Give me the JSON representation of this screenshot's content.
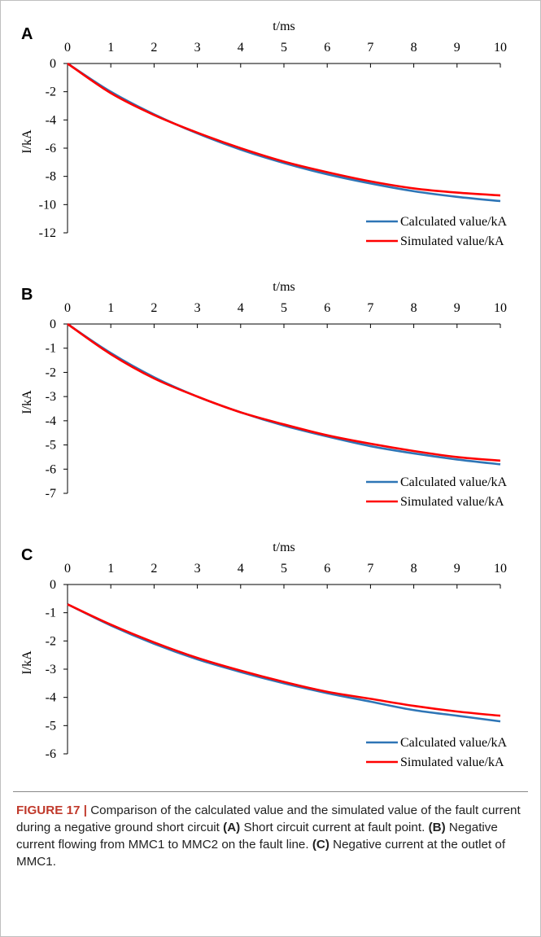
{
  "chart_data": [
    {
      "type": "line",
      "panel_label": "A",
      "xlabel": "t/ms",
      "ylabel": "I/kA",
      "xlim": [
        0,
        10
      ],
      "ylim": [
        -12,
        0
      ],
      "xticks": [
        "0",
        "1",
        "2",
        "3",
        "4",
        "5",
        "6",
        "7",
        "8",
        "9",
        "10"
      ],
      "yticks": [
        "0",
        "-2",
        "-4",
        "-6",
        "-8",
        "-10",
        "-12"
      ],
      "legend_position": "bottom-right",
      "series": [
        {
          "name": "Calculated value/kA",
          "color": "#2e75b6",
          "x": [
            0,
            1,
            2,
            3,
            4,
            5,
            6,
            7,
            8,
            9,
            10
          ],
          "y": [
            0,
            -2.0,
            -3.6,
            -4.95,
            -6.1,
            -7.05,
            -7.85,
            -8.5,
            -9.05,
            -9.45,
            -9.75
          ]
        },
        {
          "name": "Simulated value/kA",
          "color": "#ff0000",
          "x": [
            0,
            1,
            2,
            3,
            4,
            5,
            6,
            7,
            8,
            9,
            10
          ],
          "y": [
            0,
            -2.1,
            -3.65,
            -4.9,
            -6.0,
            -6.95,
            -7.7,
            -8.35,
            -8.85,
            -9.15,
            -9.35
          ]
        }
      ]
    },
    {
      "type": "line",
      "panel_label": "B",
      "xlabel": "t/ms",
      "ylabel": "I/kA",
      "xlim": [
        0,
        10
      ],
      "ylim": [
        -7,
        0
      ],
      "xticks": [
        "0",
        "1",
        "2",
        "3",
        "4",
        "5",
        "6",
        "7",
        "8",
        "9",
        "10"
      ],
      "yticks": [
        "0",
        "-1",
        "-2",
        "-3",
        "-4",
        "-5",
        "-6",
        "-7"
      ],
      "legend_position": "bottom-right",
      "series": [
        {
          "name": "Calculated value/kA",
          "color": "#2e75b6",
          "x": [
            0,
            1,
            2,
            3,
            4,
            5,
            6,
            7,
            8,
            9,
            10
          ],
          "y": [
            0,
            -1.2,
            -2.2,
            -3.0,
            -3.65,
            -4.2,
            -4.65,
            -5.05,
            -5.35,
            -5.6,
            -5.8
          ]
        },
        {
          "name": "Simulated value/kA",
          "color": "#ff0000",
          "x": [
            0,
            1,
            2,
            3,
            4,
            5,
            6,
            7,
            8,
            9,
            10
          ],
          "y": [
            0,
            -1.25,
            -2.25,
            -3.0,
            -3.65,
            -4.15,
            -4.6,
            -4.95,
            -5.25,
            -5.5,
            -5.65
          ]
        }
      ]
    },
    {
      "type": "line",
      "panel_label": "C",
      "xlabel": "t/ms",
      "ylabel": "I/kA",
      "xlim": [
        0,
        10
      ],
      "ylim": [
        -6,
        0
      ],
      "xticks": [
        "0",
        "1",
        "2",
        "3",
        "4",
        "5",
        "6",
        "7",
        "8",
        "9",
        "10"
      ],
      "yticks": [
        "0",
        "-1",
        "-2",
        "-3",
        "-4",
        "-5",
        "-6"
      ],
      "legend_position": "bottom-right",
      "series": [
        {
          "name": "Calculated value/kA",
          "color": "#2e75b6",
          "x": [
            0,
            1,
            2,
            3,
            4,
            5,
            6,
            7,
            8,
            9,
            10
          ],
          "y": [
            -0.7,
            -1.45,
            -2.1,
            -2.65,
            -3.1,
            -3.5,
            -3.85,
            -4.15,
            -4.45,
            -4.65,
            -4.85
          ]
        },
        {
          "name": "Simulated value/kA",
          "color": "#ff0000",
          "x": [
            0,
            1,
            2,
            3,
            4,
            5,
            6,
            7,
            8,
            9,
            10
          ],
          "y": [
            -0.7,
            -1.42,
            -2.05,
            -2.6,
            -3.05,
            -3.45,
            -3.8,
            -4.05,
            -4.3,
            -4.5,
            -4.65
          ]
        }
      ]
    }
  ],
  "caption": {
    "figure_label": "FIGURE 17 |",
    "text": "Comparison of the calculated value and the simulated value of the fault current during a negative ground short circuit",
    "part_a_label": "(A)",
    "part_a_text": "Short circuit current at fault point.",
    "part_b_label": "(B)",
    "part_b_text": "Negative current flowing from MMC1 to MMC2 on the fault line.",
    "part_c_label": "(C)",
    "part_c_text": "Negative current at the outlet of MMC1."
  }
}
